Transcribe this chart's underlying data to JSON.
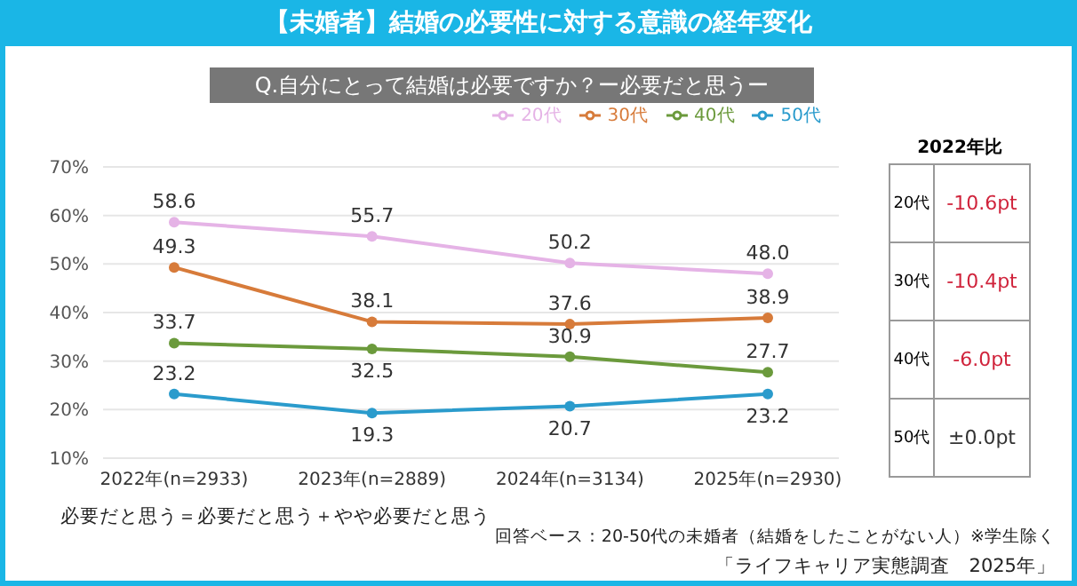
{
  "chart_data": {
    "type": "line",
    "title": "【未婚者】結婚の必要性に対する意識の経年変化",
    "subtitle": "Q.自分にとって結婚は必要ですか？ー必要だと思うー",
    "categories": [
      "2022年(n=2933)",
      "2023年(n=2889)",
      "2024年(n=3134)",
      "2025年(n=2930)"
    ],
    "series": [
      {
        "name": "20代",
        "color": "#e5b3e6",
        "values": [
          58.6,
          55.7,
          50.2,
          48.0
        ],
        "value_labels": [
          "58.6",
          "55.7",
          "50.2",
          "48.0"
        ]
      },
      {
        "name": "30代",
        "color": "#d77b3a",
        "values": [
          49.3,
          38.1,
          37.6,
          38.9
        ],
        "value_labels": [
          "49.3",
          "38.1",
          "37.6",
          "38.9"
        ]
      },
      {
        "name": "40代",
        "color": "#6b9a3c",
        "values": [
          33.7,
          32.5,
          30.9,
          27.7
        ],
        "value_labels": [
          "33.7",
          "32.5",
          "30.9",
          "27.7"
        ]
      },
      {
        "name": "50代",
        "color": "#2a9bcc",
        "values": [
          23.2,
          19.3,
          20.7,
          23.2
        ],
        "value_labels": [
          "23.2",
          "19.3",
          "20.7",
          "23.2"
        ]
      }
    ],
    "ylim": [
      10,
      70
    ],
    "yticks": [
      {
        "value": 10,
        "label": "10%"
      },
      {
        "value": 20,
        "label": "20%"
      },
      {
        "value": 30,
        "label": "30%"
      },
      {
        "value": 40,
        "label": "40%"
      },
      {
        "value": 50,
        "label": "50%"
      },
      {
        "value": 60,
        "label": "60%"
      },
      {
        "value": 70,
        "label": "70%"
      }
    ],
    "grid": "y",
    "legend": "top right",
    "marker": "circle",
    "annotations": [
      "2022年比",
      "20代",
      "-10.6pt",
      "30代",
      "-10.4pt",
      "40代",
      "-6.0pt",
      "50代",
      "±0.0pt",
      "必要だと思う＝必要だと思う＋やや必要だと思う",
      "回答ベース：20-50代の未婚者（結婚をしたことがない人）※学生除く",
      "「ライフキャリア実態調査　2025年」"
    ]
  }
}
